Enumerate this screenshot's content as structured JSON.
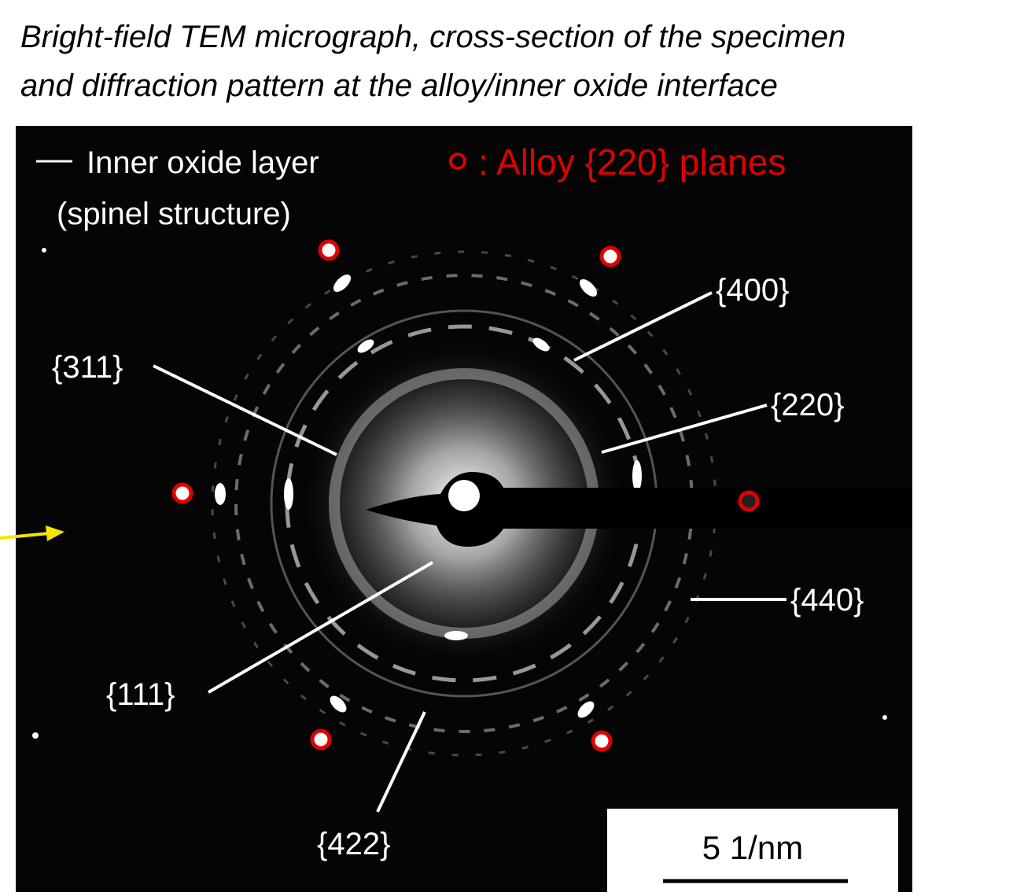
{
  "header": {
    "title_lines": [
      "Bright-field TEM micrograph, cross-section of the specimen",
      "and diffraction pattern at the alloy/inner oxide interface"
    ]
  },
  "legend": {
    "oxide_label": "Inner oxide layer",
    "oxide_note": "(spinel structure)",
    "alloy_label": ": Alloy {220} planes"
  },
  "ring_labels": [
    "{400}",
    "{220}",
    "{311}",
    "{111}",
    "{440}",
    "{422}"
  ],
  "scale_bar": "5 1/nm"
}
